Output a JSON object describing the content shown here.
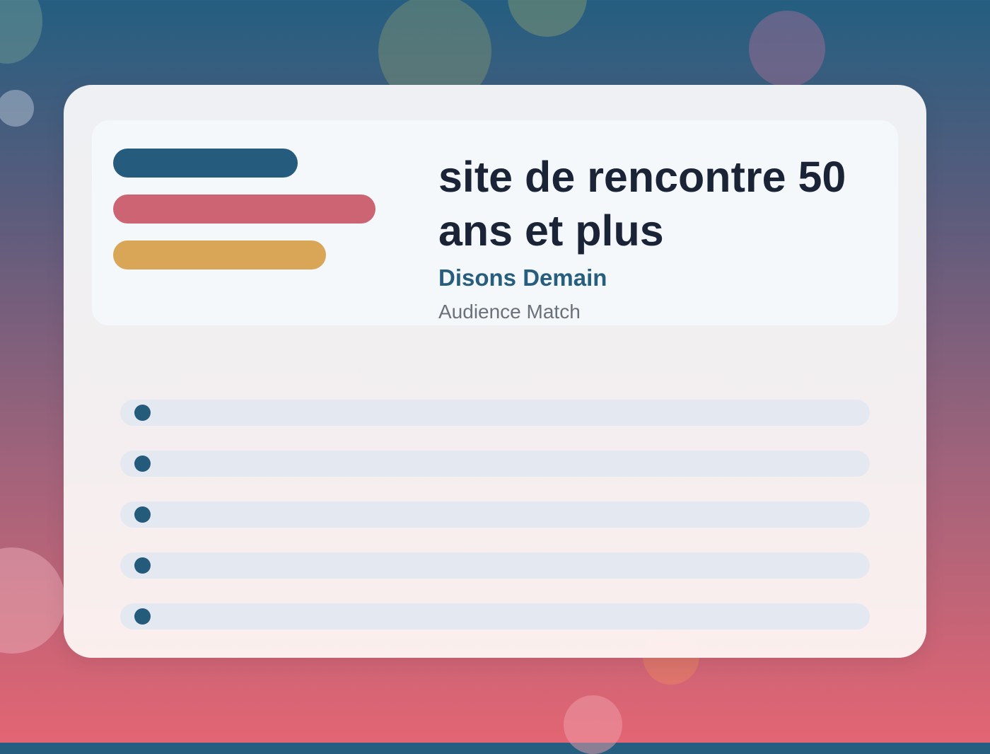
{
  "card": {
    "title": "site de rencontre 50 ans et plus",
    "brand": "Disons Demain",
    "subtitle": "Audience Match"
  },
  "colors": {
    "accent_blue": "#255c7d",
    "accent_pink": "#cd6474",
    "accent_gold": "#d8a656",
    "title_text": "#1b2437",
    "row_background": "#e4e8f1"
  },
  "list_rows": 5
}
